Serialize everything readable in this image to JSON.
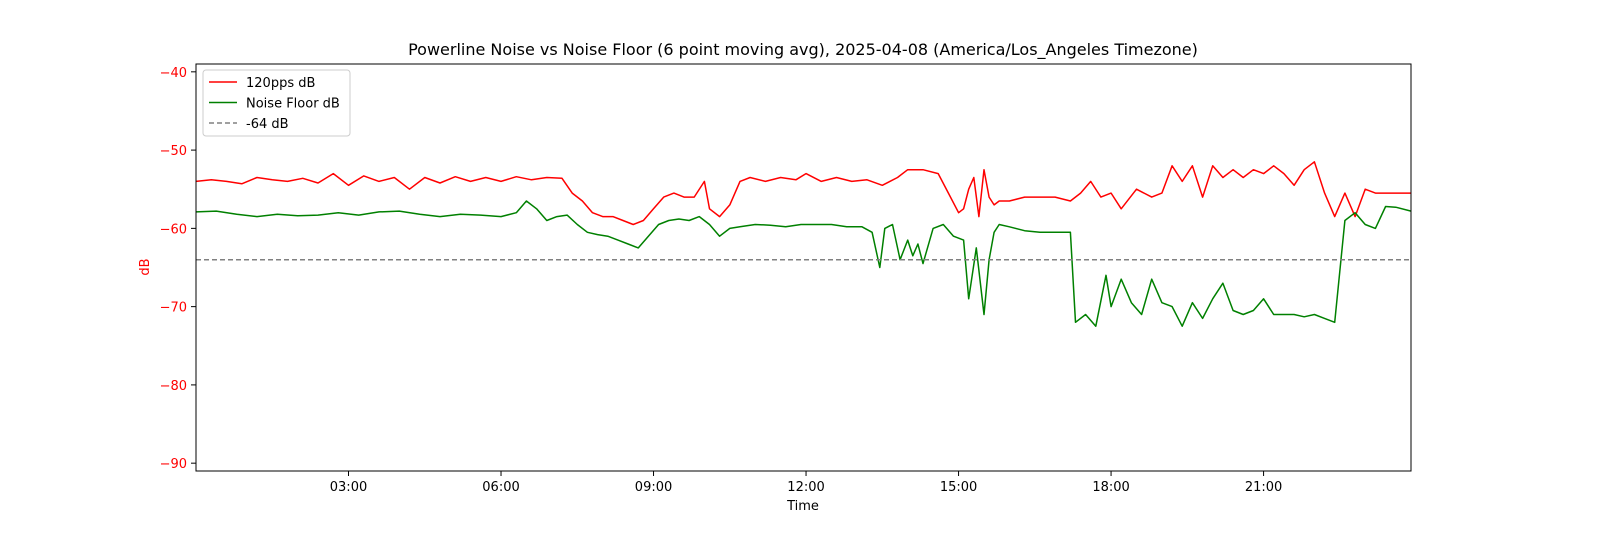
{
  "chart_data": {
    "type": "line",
    "title": "Powerline Noise vs Noise Floor (6 point moving avg), 2025-04-08 (America/Los_Angeles Timezone)",
    "xlabel": "Time",
    "ylabel": "dB",
    "ylabel_color": "#ff0000",
    "ytick_color": "#ff0000",
    "xlim_hours": [
      0,
      23.9
    ],
    "ylim": [
      -91,
      -39
    ],
    "xticks": [
      "03:00",
      "06:00",
      "09:00",
      "12:00",
      "15:00",
      "18:00",
      "21:00"
    ],
    "xtick_hours": [
      3,
      6,
      9,
      12,
      15,
      18,
      21
    ],
    "yticks": [
      -90,
      -80,
      -70,
      -60,
      -50,
      -40
    ],
    "ytick_labels": [
      "−90",
      "−80",
      "−70",
      "−60",
      "−50",
      "−40"
    ],
    "grid": false,
    "legend_position": "top-left",
    "series": [
      {
        "name": "120pps dB",
        "color": "#ff0000",
        "style": "solid",
        "hours": [
          0.0,
          0.3,
          0.6,
          0.9,
          1.2,
          1.5,
          1.8,
          2.1,
          2.4,
          2.7,
          3.0,
          3.3,
          3.6,
          3.9,
          4.2,
          4.5,
          4.8,
          5.1,
          5.4,
          5.7,
          6.0,
          6.3,
          6.6,
          6.9,
          7.2,
          7.4,
          7.6,
          7.8,
          8.0,
          8.2,
          8.4,
          8.6,
          8.8,
          9.0,
          9.2,
          9.4,
          9.6,
          9.8,
          10.0,
          10.1,
          10.3,
          10.5,
          10.7,
          10.9,
          11.2,
          11.5,
          11.8,
          12.0,
          12.3,
          12.6,
          12.9,
          13.2,
          13.5,
          13.8,
          14.0,
          14.3,
          14.6,
          14.8,
          15.0,
          15.1,
          15.2,
          15.3,
          15.4,
          15.5,
          15.6,
          15.7,
          15.8,
          16.0,
          16.3,
          16.6,
          16.9,
          17.2,
          17.4,
          17.6,
          17.8,
          18.0,
          18.2,
          18.5,
          18.8,
          19.0,
          19.2,
          19.4,
          19.6,
          19.8,
          20.0,
          20.2,
          20.4,
          20.6,
          20.8,
          21.0,
          21.2,
          21.4,
          21.6,
          21.8,
          22.0,
          22.2,
          22.4,
          22.6,
          22.8,
          23.0,
          23.2,
          23.4,
          23.6,
          23.9
        ],
        "values": [
          -54.0,
          -53.8,
          -54.0,
          -54.3,
          -53.5,
          -53.8,
          -54.0,
          -53.6,
          -54.2,
          -53.0,
          -54.5,
          -53.3,
          -54.0,
          -53.5,
          -55.0,
          -53.5,
          -54.2,
          -53.4,
          -54.0,
          -53.5,
          -54.0,
          -53.4,
          -53.8,
          -53.5,
          -53.6,
          -55.5,
          -56.5,
          -58.0,
          -58.5,
          -58.5,
          -59.0,
          -59.5,
          -59.0,
          -57.5,
          -56.0,
          -55.5,
          -56.0,
          -56.0,
          -54.0,
          -57.5,
          -58.5,
          -57.0,
          -54.0,
          -53.5,
          -54.0,
          -53.5,
          -53.8,
          -53.0,
          -54.0,
          -53.5,
          -54.0,
          -53.8,
          -54.5,
          -53.5,
          -52.5,
          -52.5,
          -53.0,
          -55.5,
          -58.0,
          -57.5,
          -55.0,
          -53.5,
          -58.5,
          -52.5,
          -56.0,
          -57.0,
          -56.5,
          -56.5,
          -56.0,
          -56.0,
          -56.0,
          -56.5,
          -55.5,
          -54.0,
          -56.0,
          -55.5,
          -57.5,
          -55.0,
          -56.0,
          -55.5,
          -52.0,
          -54.0,
          -52.0,
          -56.0,
          -52.0,
          -53.5,
          -52.5,
          -53.5,
          -52.5,
          -53.0,
          -52.0,
          -53.0,
          -54.5,
          -52.5,
          -51.5,
          -55.5,
          -58.5,
          -55.5,
          -58.5,
          -55.0,
          -55.5,
          -55.5,
          -55.5,
          -55.5
        ]
      },
      {
        "name": "Noise Floor dB",
        "color": "#008000",
        "style": "solid",
        "hours": [
          0.0,
          0.4,
          0.8,
          1.2,
          1.6,
          2.0,
          2.4,
          2.8,
          3.2,
          3.6,
          4.0,
          4.4,
          4.8,
          5.2,
          5.6,
          6.0,
          6.3,
          6.5,
          6.7,
          6.9,
          7.1,
          7.3,
          7.5,
          7.7,
          7.9,
          8.1,
          8.3,
          8.5,
          8.7,
          8.9,
          9.1,
          9.3,
          9.5,
          9.7,
          9.9,
          10.1,
          10.3,
          10.5,
          10.7,
          11.0,
          11.3,
          11.6,
          11.9,
          12.2,
          12.5,
          12.8,
          13.1,
          13.3,
          13.45,
          13.55,
          13.7,
          13.85,
          14.0,
          14.1,
          14.2,
          14.3,
          14.5,
          14.7,
          14.9,
          15.1,
          15.2,
          15.35,
          15.5,
          15.6,
          15.7,
          15.8,
          16.0,
          16.3,
          16.6,
          16.9,
          17.2,
          17.3,
          17.5,
          17.7,
          17.9,
          18.0,
          18.2,
          18.4,
          18.6,
          18.8,
          19.0,
          19.2,
          19.4,
          19.6,
          19.8,
          20.0,
          20.2,
          20.4,
          20.6,
          20.8,
          21.0,
          21.2,
          21.4,
          21.6,
          21.8,
          22.0,
          22.2,
          22.4,
          22.6,
          22.8,
          23.0,
          23.2,
          23.4,
          23.6,
          23.9
        ],
        "values": [
          -57.9,
          -57.8,
          -58.2,
          -58.5,
          -58.2,
          -58.4,
          -58.3,
          -58.0,
          -58.3,
          -57.9,
          -57.8,
          -58.2,
          -58.5,
          -58.2,
          -58.3,
          -58.5,
          -58.0,
          -56.5,
          -57.5,
          -59.0,
          -58.5,
          -58.3,
          -59.5,
          -60.5,
          -60.8,
          -61.0,
          -61.5,
          -62.0,
          -62.5,
          -61.0,
          -59.5,
          -59.0,
          -58.8,
          -59.0,
          -58.5,
          -59.5,
          -61.0,
          -60.0,
          -59.8,
          -59.5,
          -59.6,
          -59.8,
          -59.5,
          -59.5,
          -59.5,
          -59.8,
          -59.8,
          -60.5,
          -65.0,
          -60.0,
          -59.5,
          -64.0,
          -61.5,
          -63.5,
          -62.0,
          -64.5,
          -60.0,
          -59.5,
          -61.0,
          -61.5,
          -69.0,
          -62.5,
          -71.0,
          -64.0,
          -60.5,
          -59.5,
          -59.8,
          -60.3,
          -60.5,
          -60.5,
          -60.5,
          -72.0,
          -71.0,
          -72.5,
          -66.0,
          -70.0,
          -66.5,
          -69.5,
          -71.0,
          -66.5,
          -69.5,
          -70.0,
          -72.5,
          -69.5,
          -71.5,
          -69.0,
          -67.0,
          -70.5,
          -71.0,
          -70.5,
          -69.0,
          -71.0,
          -71.0,
          -71.0,
          -71.3,
          -71.0,
          -71.5,
          -72.0,
          -59.0,
          -58.0,
          -59.5,
          -60.0,
          -57.2,
          -57.3,
          -57.8
        ]
      },
      {
        "name": "-64 dB",
        "color": "#808080",
        "style": "dashed",
        "hours": [
          0,
          23.9
        ],
        "values": [
          -64,
          -64
        ]
      }
    ]
  }
}
